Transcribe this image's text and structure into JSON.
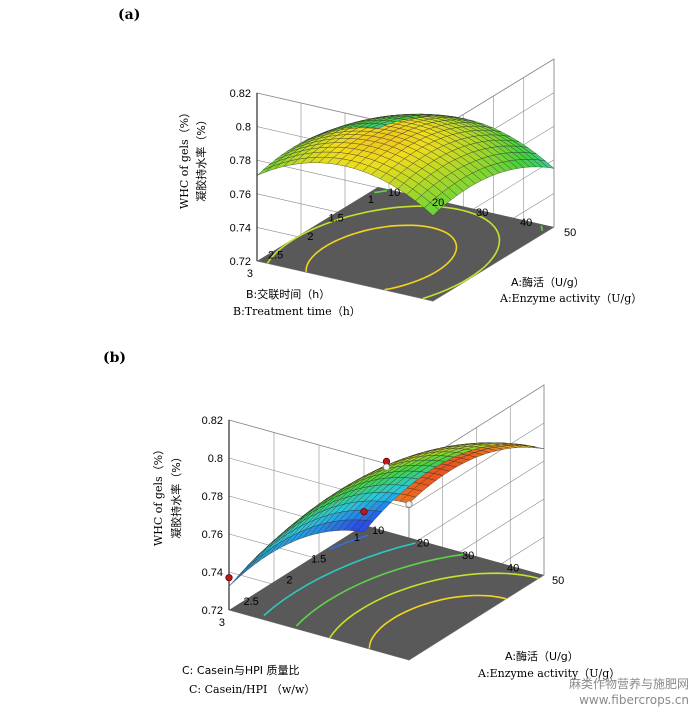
{
  "watermark": "麻类作物营养与施肥网",
  "watermark_url": "www.fibercrops.cn",
  "colors": {
    "floor": "#595959",
    "grid": "#8c8c8c",
    "mesh": "#2b2b2b"
  },
  "chart_data": [
    {
      "type": "surface3d",
      "panel_label": "(a)",
      "zlabel_en": "WHC of gels（%）",
      "zlabel_cn": "凝胶持水率（%）",
      "z_ticks": [
        "0.72",
        "0.74",
        "0.76",
        "0.78",
        "0.8",
        "0.82"
      ],
      "zlim": [
        0.72,
        0.82
      ],
      "x_axis_cn": "A:酶活（U/g）",
      "x_axis_en": "A:Enzyme activity（U/g）",
      "x_ticks": [
        "10",
        "20",
        "30",
        "40",
        "50"
      ],
      "xlim": [
        10,
        50
      ],
      "y_axis_cn": "B:交联时间（h）",
      "y_axis_en": "B:Treatment time（h）",
      "y_ticks": [
        "1",
        "1.5",
        "2",
        "2.5",
        "3"
      ],
      "ylim": [
        1,
        3
      ],
      "model": {
        "max": 0.792,
        "opt_x": 0.5,
        "opt_y": 0.7,
        "kx": 0.07,
        "ky": 0.04
      },
      "grid_on": true
    },
    {
      "type": "surface3d",
      "panel_label": "(b)",
      "zlabel_en": "WHC of gels（%）",
      "zlabel_cn": "凝胶持水率（%）",
      "z_ticks": [
        "0.72",
        "0.74",
        "0.76",
        "0.78",
        "0.8",
        "0.82"
      ],
      "zlim": [
        0.72,
        0.82
      ],
      "x_axis_cn": "A:酶活（U/g）",
      "x_axis_en": "A:Enzyme activity（U/g）",
      "x_ticks": [
        "10",
        "20",
        "30",
        "40",
        "50"
      ],
      "xlim": [
        10,
        50
      ],
      "y_axis_cn": "C: Casein与HPI 质量比",
      "y_axis_en": "C: Casein/HPI （w/w）",
      "y_ticks": [
        "1",
        "1.5",
        "2",
        "2.5",
        "3"
      ],
      "ylim": [
        1,
        3
      ],
      "model": {
        "max": 0.806,
        "opt_x": 1.0,
        "opt_y": 0.7,
        "kx": 0.07,
        "ky": 0.04
      },
      "design_points": [
        {
          "a": 50,
          "c": 3,
          "whc": 0.802
        },
        {
          "a": 10,
          "c": 3,
          "whc": 0.737
        },
        {
          "a": 30,
          "c": 2,
          "whc": 0.789
        },
        {
          "a": 30,
          "c": 2,
          "whc": 0.786
        },
        {
          "a": 10,
          "c": 1,
          "whc": 0.727
        }
      ],
      "grid_on": true
    }
  ]
}
